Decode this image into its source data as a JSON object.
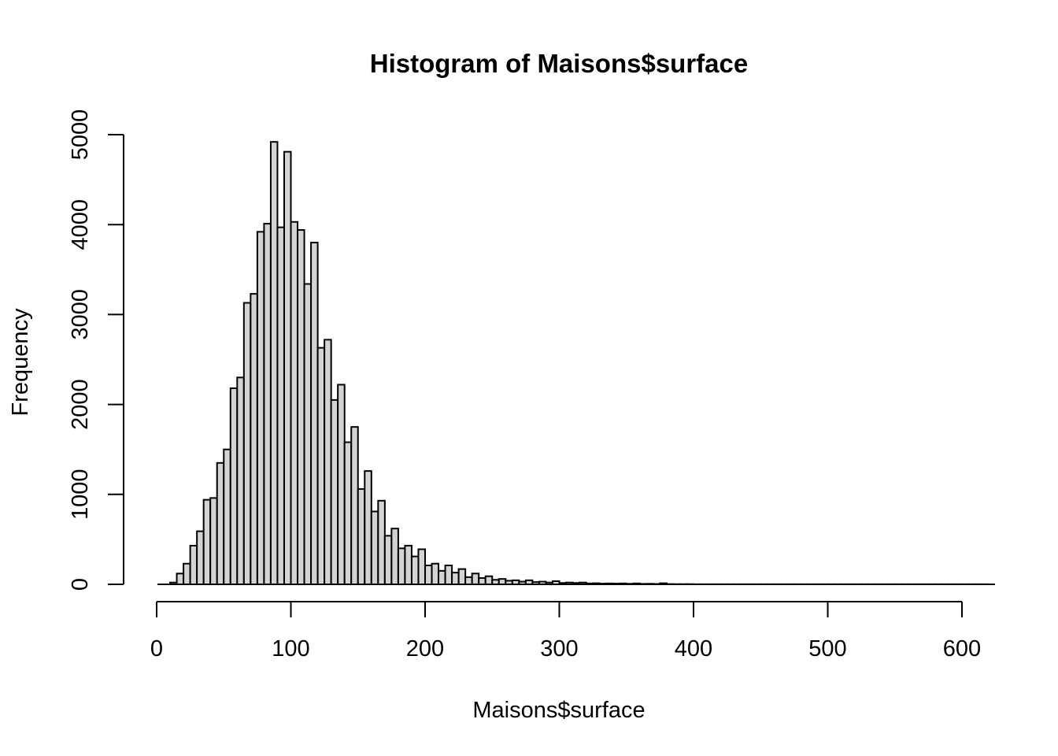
{
  "chart_data": {
    "type": "bar",
    "title": "Histogram of Maisons$surface",
    "xlabel": "Maisons$surface",
    "ylabel": "Frequency",
    "xlim": [
      0,
      620
    ],
    "ylim": [
      0,
      5000
    ],
    "x_ticks": [
      0,
      100,
      200,
      300,
      400,
      500,
      600
    ],
    "y_ticks": [
      0,
      1000,
      2000,
      3000,
      4000,
      5000
    ],
    "x_tick_labels": [
      "0",
      "100",
      "200",
      "300",
      "400",
      "500",
      "600"
    ],
    "y_tick_labels": [
      "0",
      "1000",
      "2000",
      "3000",
      "4000",
      "5000"
    ],
    "bin_width": 5,
    "bins_start": [
      10,
      15,
      20,
      25,
      30,
      35,
      40,
      45,
      50,
      55,
      60,
      65,
      70,
      75,
      80,
      85,
      90,
      95,
      100,
      105,
      110,
      115,
      120,
      125,
      130,
      135,
      140,
      145,
      150,
      155,
      160,
      165,
      170,
      175,
      180,
      185,
      190,
      195,
      200,
      205,
      210,
      215,
      220,
      225,
      230,
      235,
      240,
      245,
      250,
      255,
      260,
      265,
      270,
      275,
      280,
      285,
      290,
      295,
      300,
      305,
      310,
      315,
      320,
      325,
      330,
      335,
      340,
      345,
      350,
      355,
      360,
      365,
      370,
      375,
      380,
      385,
      390,
      395,
      400,
      405,
      410,
      415,
      420,
      425,
      430,
      435,
      440,
      445,
      450,
      455,
      460,
      465,
      470,
      475,
      480,
      485,
      490,
      495,
      500,
      505,
      510,
      515,
      520,
      525,
      530,
      535,
      540,
      545,
      550,
      555,
      560,
      565,
      570,
      575,
      580,
      585,
      590,
      595,
      600,
      605,
      610,
      615
    ],
    "values": [
      20,
      120,
      230,
      430,
      590,
      940,
      960,
      1350,
      1500,
      2180,
      2300,
      3130,
      3230,
      3920,
      4010,
      4920,
      3970,
      4810,
      4030,
      3940,
      3340,
      3800,
      2630,
      2720,
      2050,
      2220,
      1580,
      1750,
      1060,
      1260,
      810,
      930,
      540,
      620,
      400,
      430,
      310,
      390,
      210,
      230,
      150,
      210,
      130,
      170,
      80,
      120,
      70,
      90,
      50,
      60,
      40,
      45,
      30,
      45,
      25,
      30,
      20,
      35,
      15,
      20,
      15,
      20,
      10,
      12,
      8,
      10,
      8,
      10,
      6,
      10,
      5,
      6,
      4,
      12,
      3,
      2,
      2,
      2,
      1,
      1,
      1,
      1,
      1,
      1,
      1,
      1,
      1,
      1,
      1,
      1,
      1,
      1,
      1,
      1,
      1,
      1,
      1,
      1,
      1,
      1,
      1,
      1,
      1,
      1,
      1,
      1,
      1,
      1,
      1,
      1,
      1,
      1,
      1,
      1,
      1,
      1,
      1,
      1,
      1,
      1,
      1,
      1
    ],
    "fill_color": "#d3d3d3",
    "stroke_color": "#000000"
  }
}
